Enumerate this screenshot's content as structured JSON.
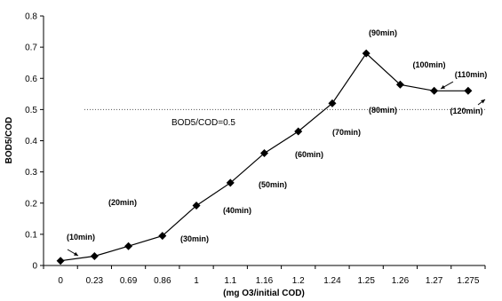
{
  "chart_data": {
    "type": "line",
    "categories": [
      "0",
      "0.23",
      "0.69",
      "0.86",
      "1",
      "1.1",
      "1.16",
      "1.2",
      "1.24",
      "1.25",
      "1.26",
      "1.27",
      "1.275"
    ],
    "values": [
      0.015,
      0.03,
      0.062,
      0.095,
      0.192,
      0.265,
      0.36,
      0.43,
      0.52,
      0.68,
      0.58,
      0.56,
      0.56
    ],
    "xlabel": "(mg O3/initial COD)",
    "ylabel": "BOD5/COD",
    "ylim": [
      0,
      0.8
    ],
    "yticks": [
      "0",
      "0.1",
      "0.2",
      "0.3",
      "0.4",
      "0.5",
      "0.6",
      "0.7",
      "0.8"
    ],
    "reference_line": {
      "value": 0.5,
      "label": "BOD5/COD=0.5",
      "style": "dotted"
    },
    "annotations": [
      "(10min)",
      "(20min)",
      "(30min)",
      "(40min)",
      "(50min)",
      "(60min)",
      "(70min)",
      "(80min)",
      "(90min)",
      "(100min)",
      "(110min)",
      "(120min)"
    ],
    "grid": false,
    "legend": "none",
    "marker": "diamond",
    "colors": {
      "line": "#000000",
      "reference": "#555555"
    }
  }
}
